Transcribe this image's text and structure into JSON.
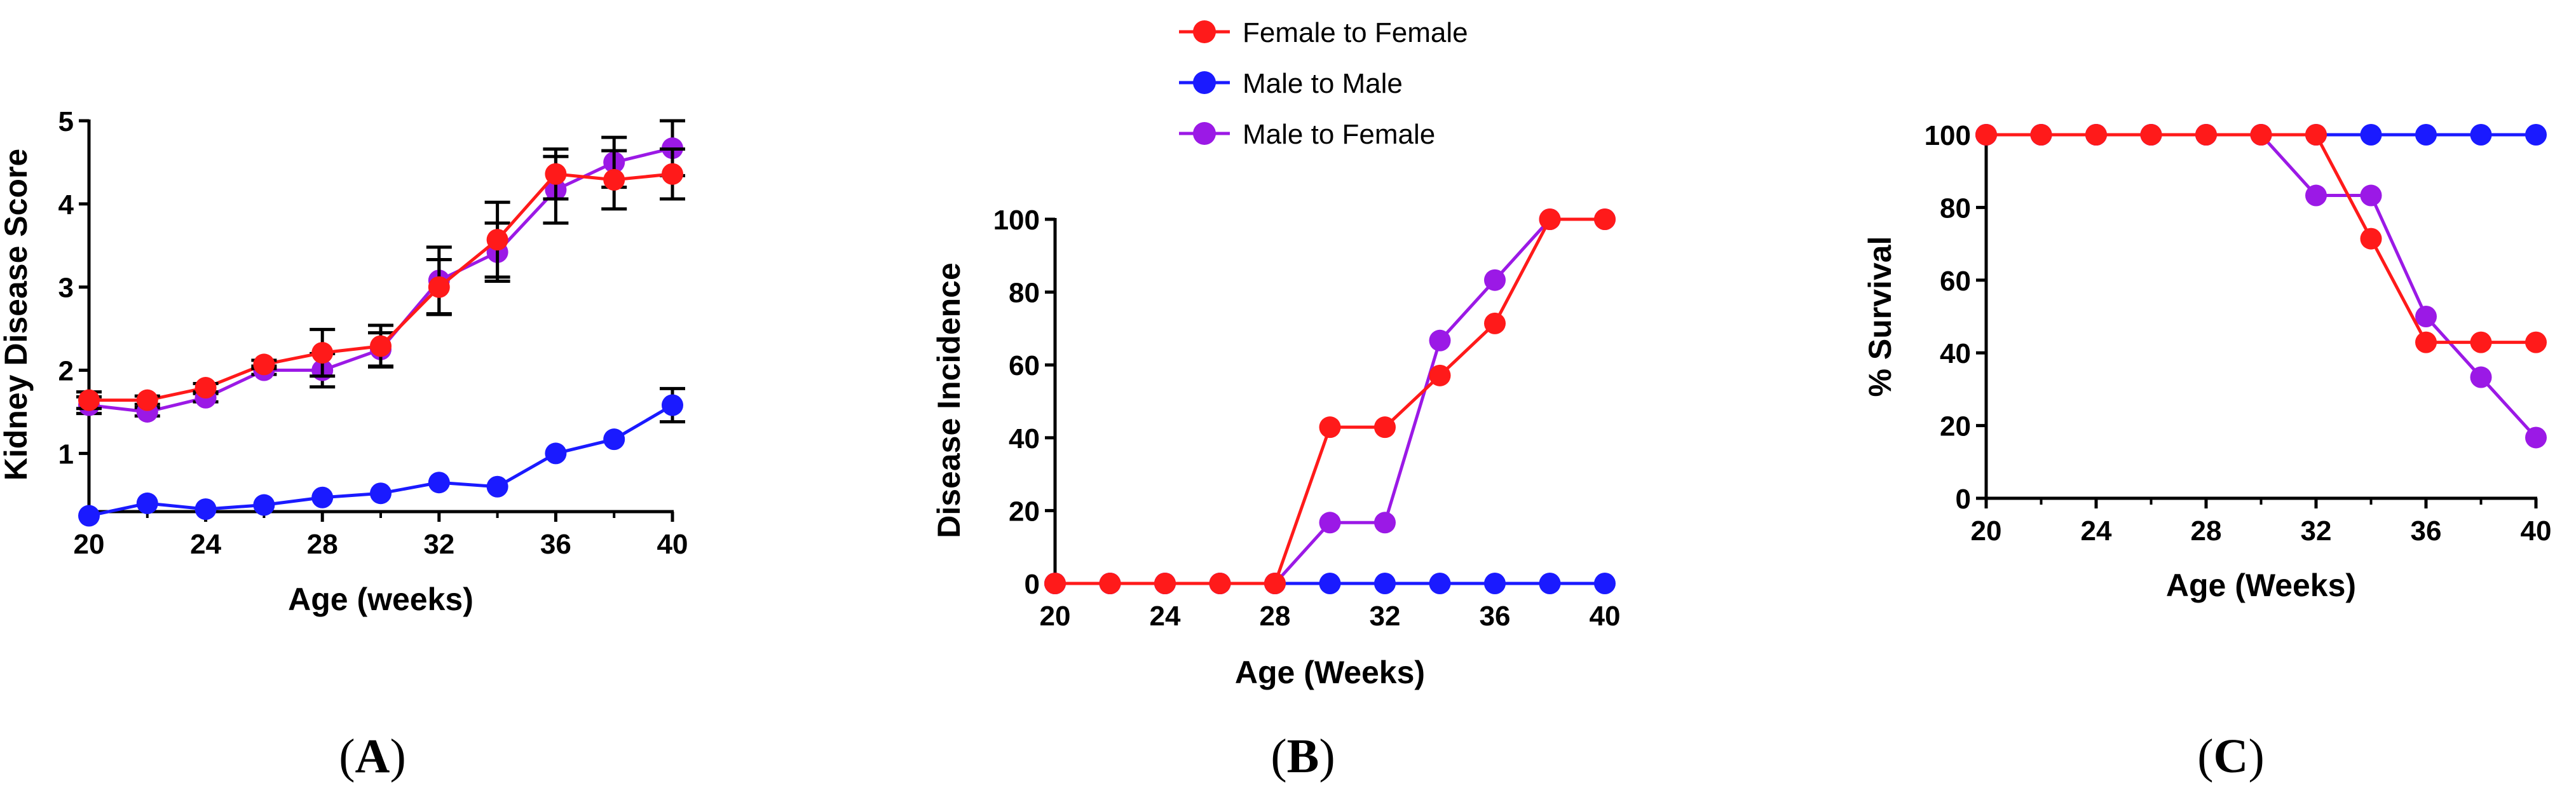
{
  "legend": [
    {
      "name": "Female to Female",
      "color": "#ff1a1a"
    },
    {
      "name": "Male to Male",
      "color": "#1a1aff"
    },
    {
      "name": "Male to Female",
      "color": "#9b19e6"
    }
  ],
  "panel_labels": {
    "A": {
      "open": "(",
      "letter": "A",
      "close": ")"
    },
    "B": {
      "open": "(",
      "letter": "B",
      "close": ")"
    },
    "C": {
      "open": "(",
      "letter": "C",
      "close": ")"
    }
  },
  "chart_data": [
    {
      "id": "A",
      "type": "line",
      "title": "",
      "xlabel": "Age (weeks)",
      "ylabel": "Kidney Disease Score",
      "xlim": [
        20,
        40
      ],
      "ylim": [
        0.3,
        5
      ],
      "xticks": [
        20,
        24,
        28,
        32,
        36,
        40
      ],
      "yticks": [
        1,
        2,
        3,
        4,
        5
      ],
      "x": [
        20,
        22,
        24,
        26,
        28,
        30,
        32,
        34,
        36,
        38,
        40
      ],
      "series": [
        {
          "name": "Male to Male",
          "color": "#1a1aff",
          "values": [
            0.25,
            0.4,
            0.33,
            0.38,
            0.47,
            0.52,
            0.65,
            0.6,
            1.0,
            1.17,
            1.58
          ],
          "errors": [
            0,
            0,
            0,
            0,
            0,
            0,
            0,
            0,
            0,
            0,
            0.2
          ]
        },
        {
          "name": "Male to Female",
          "color": "#9b19e6",
          "values": [
            1.58,
            1.5,
            1.67,
            2.0,
            2.0,
            2.25,
            3.08,
            3.42,
            4.17,
            4.5,
            4.67
          ],
          "errors": [
            0.1,
            0.05,
            0.05,
            0.05,
            0.2,
            0.2,
            0.4,
            0.35,
            0.4,
            0.3,
            0.33
          ]
        },
        {
          "name": "Female to Female",
          "color": "#ff1a1a",
          "values": [
            1.64,
            1.64,
            1.79,
            2.07,
            2.21,
            2.29,
            3.0,
            3.57,
            4.36,
            4.29,
            4.36
          ],
          "errors": [
            0.1,
            0.05,
            0.05,
            0.05,
            0.28,
            0.25,
            0.33,
            0.45,
            0.3,
            0.35,
            0.3
          ]
        }
      ]
    },
    {
      "id": "B",
      "type": "line",
      "title": "",
      "xlabel": "Age (Weeks)",
      "ylabel": "Disease  Incidence",
      "xlim": [
        20,
        40
      ],
      "ylim": [
        0,
        100
      ],
      "xticks": [
        20,
        24,
        28,
        32,
        36,
        40
      ],
      "yticks": [
        0,
        20,
        40,
        60,
        80,
        100
      ],
      "x": [
        20,
        22,
        24,
        26,
        28,
        30,
        32,
        34,
        36,
        38,
        40
      ],
      "series": [
        {
          "name": "Male to Male",
          "color": "#1a1aff",
          "values": [
            0,
            0,
            0,
            0,
            0,
            0,
            0,
            0,
            0,
            0,
            0
          ]
        },
        {
          "name": "Male to Female",
          "color": "#9b19e6",
          "values": [
            0,
            0,
            0,
            0,
            0,
            16.7,
            16.7,
            66.7,
            83.3,
            100,
            100
          ]
        },
        {
          "name": "Female to Female",
          "color": "#ff1a1a",
          "values": [
            0,
            0,
            0,
            0,
            0,
            42.9,
            42.9,
            57.1,
            71.4,
            100,
            100
          ]
        }
      ]
    },
    {
      "id": "C",
      "type": "line",
      "title": "",
      "xlabel": "Age (Weeks)",
      "ylabel": "%  Survival",
      "xlim": [
        20,
        40
      ],
      "ylim": [
        0,
        100
      ],
      "xticks": [
        20,
        24,
        28,
        32,
        36,
        40
      ],
      "yticks": [
        0,
        20,
        40,
        60,
        80,
        100
      ],
      "x": [
        20,
        22,
        24,
        26,
        28,
        30,
        32,
        34,
        36,
        38,
        40
      ],
      "series": [
        {
          "name": "Male to Male",
          "color": "#1a1aff",
          "values": [
            100,
            100,
            100,
            100,
            100,
            100,
            100,
            100,
            100,
            100,
            100
          ]
        },
        {
          "name": "Male to Female",
          "color": "#9b19e6",
          "values": [
            100,
            100,
            100,
            100,
            100,
            100,
            83.3,
            83.3,
            50,
            33.3,
            16.7
          ]
        },
        {
          "name": "Female to Female",
          "color": "#ff1a1a",
          "values": [
            100,
            100,
            100,
            100,
            100,
            100,
            100,
            71.4,
            42.9,
            42.9,
            42.9
          ]
        }
      ]
    }
  ]
}
